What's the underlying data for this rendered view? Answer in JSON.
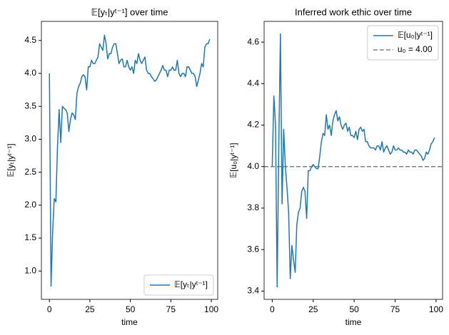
{
  "chart_data": [
    {
      "type": "line",
      "title": "𝔼[yₜ|yᵗ⁻¹] over time",
      "xlabel": "time",
      "ylabel": "𝔼[yₜ|yᵗ⁻¹]",
      "x": [
        0,
        1,
        2,
        3,
        4,
        5,
        6,
        7,
        8,
        9,
        10,
        11,
        12,
        13,
        14,
        15,
        16,
        17,
        18,
        19,
        20,
        21,
        22,
        23,
        24,
        25,
        26,
        27,
        28,
        29,
        30,
        31,
        32,
        33,
        34,
        35,
        36,
        37,
        38,
        39,
        40,
        41,
        42,
        43,
        44,
        45,
        46,
        47,
        48,
        49,
        50,
        51,
        52,
        53,
        54,
        55,
        56,
        57,
        58,
        59,
        60,
        61,
        62,
        63,
        64,
        65,
        66,
        67,
        68,
        69,
        70,
        71,
        72,
        73,
        74,
        75,
        76,
        77,
        78,
        79,
        80,
        81,
        82,
        83,
        84,
        85,
        86,
        87,
        88,
        89,
        90,
        91,
        92,
        93,
        94,
        95,
        96,
        97,
        98,
        99
      ],
      "series": [
        {
          "name": "𝔼[yₜ|yᵗ⁻¹]",
          "color": "#1f77b4",
          "values": [
            4.0,
            0.77,
            1.6,
            2.1,
            2.05,
            2.9,
            3.45,
            2.95,
            3.5,
            3.47,
            3.45,
            3.4,
            3.12,
            3.3,
            3.4,
            3.37,
            3.3,
            3.7,
            3.8,
            3.85,
            3.95,
            3.98,
            3.95,
            3.75,
            4.1,
            4.1,
            4.2,
            4.15,
            4.15,
            4.2,
            4.25,
            4.45,
            4.4,
            4.35,
            4.58,
            4.45,
            4.22,
            4.3,
            4.3,
            4.4,
            4.45,
            4.45,
            4.3,
            4.15,
            4.2,
            4.22,
            4.1,
            4.1,
            4.2,
            4.1,
            4.05,
            4.1,
            4.0,
            4.2,
            4.15,
            4.3,
            4.2,
            4.15,
            4.2,
            4.25,
            4.05,
            4.0,
            4.0,
            3.95,
            3.92,
            3.88,
            3.9,
            3.95,
            4.0,
            4.05,
            4.12,
            4.05,
            4.05,
            3.95,
            4.05,
            4.05,
            4.1,
            4.05,
            4.05,
            4.2,
            4.0,
            3.95,
            4.0,
            4.0,
            3.95,
            4.1,
            4.1,
            4.05,
            4.0,
            4.0,
            3.95,
            3.8,
            3.9,
            4.0,
            4.15,
            4.1,
            4.4,
            4.45,
            4.45,
            4.52
          ]
        }
      ],
      "xlim": [
        -4.95,
        103.95
      ],
      "ylim": [
        0.57,
        4.79
      ],
      "xticks": [
        0,
        25,
        50,
        75,
        100
      ],
      "yticks": [
        {
          "value": 1,
          "label": "1.0"
        },
        1.5,
        {
          "value": 2,
          "label": "2.0"
        },
        2.5,
        {
          "value": 3,
          "label": "3.0"
        },
        3.5,
        {
          "value": 4,
          "label": "4.0"
        },
        4.5
      ],
      "legend": "lower right"
    },
    {
      "type": "line",
      "title": "Inferred work ethic over time",
      "xlabel": "time",
      "ylabel": "𝔼[u₀|yᵗ⁻¹]",
      "x": [
        0,
        1,
        2,
        3,
        4,
        5,
        6,
        7,
        8,
        9,
        10,
        11,
        12,
        13,
        14,
        15,
        16,
        17,
        18,
        19,
        20,
        21,
        22,
        23,
        24,
        25,
        26,
        27,
        28,
        29,
        30,
        31,
        32,
        33,
        34,
        35,
        36,
        37,
        38,
        39,
        40,
        41,
        42,
        43,
        44,
        45,
        46,
        47,
        48,
        49,
        50,
        51,
        52,
        53,
        54,
        55,
        56,
        57,
        58,
        59,
        60,
        61,
        62,
        63,
        64,
        65,
        66,
        67,
        68,
        69,
        70,
        71,
        72,
        73,
        74,
        75,
        76,
        77,
        78,
        79,
        80,
        81,
        82,
        83,
        84,
        85,
        86,
        87,
        88,
        89,
        90,
        91,
        92,
        93,
        94,
        95,
        96,
        97,
        98,
        99
      ],
      "series": [
        {
          "name": "𝔼[u₀|yᵗ⁻¹]",
          "color": "#1f77b4",
          "values": [
            4.0,
            4.34,
            4.2,
            3.42,
            4.1,
            4.64,
            3.82,
            4.18,
            4.0,
            3.9,
            3.78,
            3.46,
            3.62,
            3.55,
            3.49,
            3.72,
            3.78,
            3.8,
            3.88,
            3.9,
            3.88,
            3.75,
            3.98,
            3.98,
            4.0,
            4.01,
            4.0,
            3.99,
            3.99,
            4.05,
            4.12,
            4.16,
            4.15,
            4.25,
            4.18,
            4.2,
            4.15,
            4.22,
            4.25,
            4.27,
            4.22,
            4.24,
            4.2,
            4.18,
            4.2,
            4.21,
            4.17,
            4.19,
            4.15,
            4.15,
            4.14,
            4.17,
            4.13,
            4.18,
            4.19,
            4.17,
            4.18,
            4.12,
            4.12,
            4.1,
            4.09,
            4.09,
            4.09,
            4.08,
            4.1,
            4.1,
            4.08,
            4.12,
            4.07,
            4.09,
            4.1,
            4.08,
            4.06,
            4.07,
            4.1,
            4.08,
            4.08,
            4.09,
            4.08,
            4.08,
            4.07,
            4.07,
            4.06,
            4.08,
            4.07,
            4.07,
            4.06,
            4.08,
            4.08,
            4.07,
            4.06,
            4.05,
            4.03,
            4.04,
            4.07,
            4.06,
            4.08,
            4.11,
            4.12,
            4.14
          ]
        }
      ],
      "hlines": [
        {
          "name": "u₀ = 4.00",
          "value": 4,
          "color": "#808080"
        }
      ],
      "xlim": [
        -4.95,
        103.95
      ],
      "ylim": [
        3.36,
        4.7
      ],
      "xticks": [
        0,
        25,
        50,
        75,
        100
      ],
      "yticks": [
        3.4,
        3.6,
        3.8,
        {
          "value": 4,
          "label": "4.0"
        },
        4.2,
        4.4,
        4.6
      ],
      "legend": "upper right"
    }
  ]
}
